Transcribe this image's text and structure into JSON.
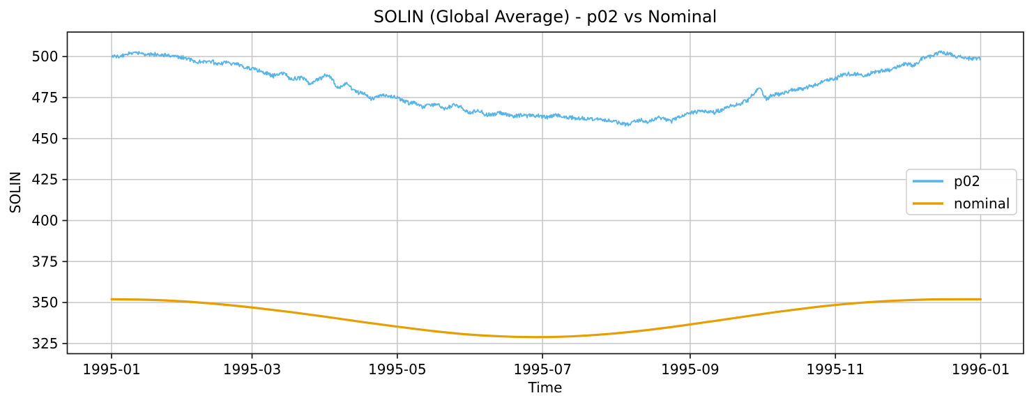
{
  "figure": {
    "title": "SOLIN (Global Average) - p02 vs Nominal",
    "xlabel": "Time",
    "ylabel": "SOLIN"
  },
  "chart_data": {
    "type": "line",
    "title": "SOLIN (Global Average) - p02 vs Nominal",
    "xlabel": "Time",
    "ylabel": "SOLIN",
    "x_unit": "days since 1995-01-01",
    "grid": true,
    "xlim": [
      -18.6,
      383.0
    ],
    "ylim": [
      318.8,
      514.95
    ],
    "yticks": [
      325,
      350,
      375,
      400,
      425,
      450,
      475,
      500
    ],
    "xticks": [
      {
        "day": 0,
        "label": "1995-01"
      },
      {
        "day": 59,
        "label": "1995-03"
      },
      {
        "day": 120,
        "label": "1995-05"
      },
      {
        "day": 181,
        "label": "1995-07"
      },
      {
        "day": 243,
        "label": "1995-09"
      },
      {
        "day": 304,
        "label": "1995-11"
      },
      {
        "day": 365,
        "label": "1996-01"
      }
    ],
    "legend": {
      "position": "center-right",
      "entries": [
        "p02",
        "nominal"
      ]
    },
    "series": [
      {
        "name": "p02",
        "color": "#56b4e9",
        "style": "noisy",
        "linewidth": 1.8,
        "noise_amplitude": 1.1,
        "points": [
          [
            0,
            500.3
          ],
          [
            4,
            500.8
          ],
          [
            8,
            502.0
          ],
          [
            12,
            503.2
          ],
          [
            15,
            501.5
          ],
          [
            19,
            500.8
          ],
          [
            23,
            501.5
          ],
          [
            27,
            499.5
          ],
          [
            31,
            499.0
          ],
          [
            36,
            497.3
          ],
          [
            40,
            497.8
          ],
          [
            44,
            495.0
          ],
          [
            48,
            496.5
          ],
          [
            52,
            495.5
          ],
          [
            56,
            493.5
          ],
          [
            59,
            492.5
          ],
          [
            64,
            490.5
          ],
          [
            68,
            488.0
          ],
          [
            71,
            490.0
          ],
          [
            76,
            486.0
          ],
          [
            80,
            487.5
          ],
          [
            83,
            483.5
          ],
          [
            87,
            487.0
          ],
          [
            91,
            489.0
          ],
          [
            95,
            480.8
          ],
          [
            99,
            484.0
          ],
          [
            103,
            478.5
          ],
          [
            107,
            477.5
          ],
          [
            109,
            474.5
          ],
          [
            114,
            476.5
          ],
          [
            120,
            474.3
          ],
          [
            125,
            472.0
          ],
          [
            131,
            469.5
          ],
          [
            136,
            471.0
          ],
          [
            140,
            468.0
          ],
          [
            145,
            469.5
          ],
          [
            150,
            466.0
          ],
          [
            154,
            467.5
          ],
          [
            158,
            464.0
          ],
          [
            163,
            466.5
          ],
          [
            168,
            464.5
          ],
          [
            173,
            465.8
          ],
          [
            178,
            464.0
          ],
          [
            183,
            463.5
          ],
          [
            188,
            463.8
          ],
          [
            193,
            462.5
          ],
          [
            198,
            463.0
          ],
          [
            203,
            461.8
          ],
          [
            208,
            462.3
          ],
          [
            213,
            460.0
          ],
          [
            217,
            459.2
          ],
          [
            221,
            461.5
          ],
          [
            226,
            460.5
          ],
          [
            230,
            463.0
          ],
          [
            235,
            461.0
          ],
          [
            239,
            463.5
          ],
          [
            243,
            465.5
          ],
          [
            248,
            467.2
          ],
          [
            253,
            466.0
          ],
          [
            258,
            468.0
          ],
          [
            263,
            470.0
          ],
          [
            267,
            473.0
          ],
          [
            270,
            476.5
          ],
          [
            272,
            480.5
          ],
          [
            275,
            473.5
          ],
          [
            278,
            477.0
          ],
          [
            282,
            477.5
          ],
          [
            286,
            479.5
          ],
          [
            290,
            481.0
          ],
          [
            294,
            482.0
          ],
          [
            299,
            484.5
          ],
          [
            304,
            487.0
          ],
          [
            308,
            489.0
          ],
          [
            312,
            489.5
          ],
          [
            316,
            488.5
          ],
          [
            321,
            491.0
          ],
          [
            326,
            492.5
          ],
          [
            330,
            494.5
          ],
          [
            334,
            496.0
          ],
          [
            337,
            495.0
          ],
          [
            340,
            497.5
          ],
          [
            344,
            500.0
          ],
          [
            348,
            502.5
          ],
          [
            351,
            501.5
          ],
          [
            354,
            499.5
          ],
          [
            357,
            500.0
          ],
          [
            360,
            499.3
          ],
          [
            363,
            499.6
          ],
          [
            365,
            499.0
          ]
        ]
      },
      {
        "name": "nominal",
        "color": "#e69f00",
        "style": "smooth",
        "linewidth": 3.2,
        "points": [
          [
            0,
            352.0
          ],
          [
            15,
            351.7
          ],
          [
            30,
            350.7
          ],
          [
            45,
            349.0
          ],
          [
            60,
            346.8
          ],
          [
            75,
            344.2
          ],
          [
            90,
            341.3
          ],
          [
            105,
            338.2
          ],
          [
            120,
            335.3
          ],
          [
            135,
            332.6
          ],
          [
            150,
            330.5
          ],
          [
            165,
            329.3
          ],
          [
            180,
            328.9
          ],
          [
            195,
            329.5
          ],
          [
            210,
            331.0
          ],
          [
            225,
            333.2
          ],
          [
            240,
            336.0
          ],
          [
            255,
            339.1
          ],
          [
            270,
            342.3
          ],
          [
            285,
            345.3
          ],
          [
            300,
            347.9
          ],
          [
            315,
            349.9
          ],
          [
            330,
            351.2
          ],
          [
            345,
            351.9
          ],
          [
            365,
            352.0
          ]
        ]
      }
    ],
    "colors": {
      "grid": "#c6c6c6",
      "spine": "#1a1a1a",
      "background": "#ffffff",
      "legend_border": "#cccccc"
    }
  }
}
